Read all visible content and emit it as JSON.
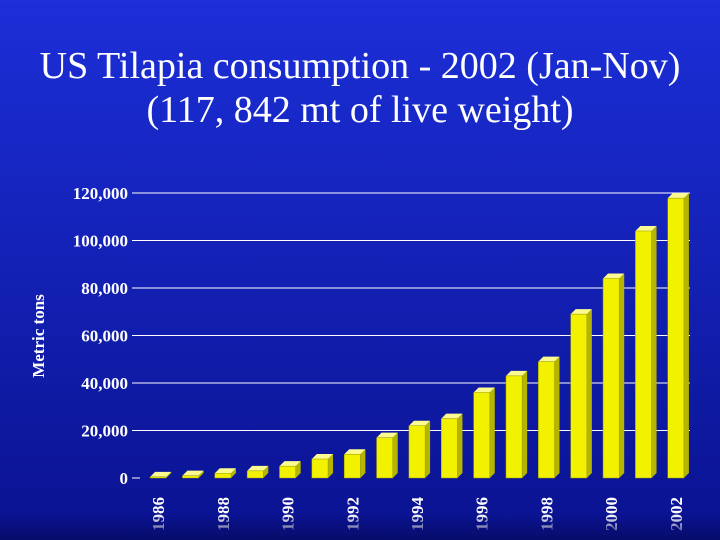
{
  "title": {
    "line1": "US Tilapia consumption - 2002 (Jan-Nov)",
    "line2": "(117, 842 mt of live weight)"
  },
  "colors": {
    "background": "#1422b8",
    "bar_front": "#f2f200",
    "bar_top": "#fbfb90",
    "bar_side": "#b5b500",
    "gridline": "#ffffff"
  },
  "chart_data": {
    "type": "bar",
    "ylabel": "Metric tons",
    "ylim": [
      0,
      120000
    ],
    "yticks": [
      0,
      20000,
      40000,
      60000,
      80000,
      100000,
      120000
    ],
    "ytick_labels": [
      "0",
      "20,000",
      "40,000",
      "60,000",
      "80,000",
      "100,000",
      "120,000"
    ],
    "grid": true,
    "categories": [
      "1986",
      "1987",
      "1988",
      "1989",
      "1990",
      "1991",
      "1992",
      "1993",
      "1994",
      "1995",
      "1996",
      "1997",
      "1998",
      "1999",
      "2000",
      "2001",
      "2002"
    ],
    "shown_labels": [
      "1986",
      "1988",
      "1990",
      "1992",
      "1994",
      "1996",
      "1998",
      "2000",
      "2002"
    ],
    "values": [
      500,
      1000,
      2000,
      3000,
      5000,
      8000,
      10000,
      17000,
      22000,
      25000,
      36000,
      43000,
      49000,
      69000,
      84000,
      104000,
      117842
    ]
  }
}
